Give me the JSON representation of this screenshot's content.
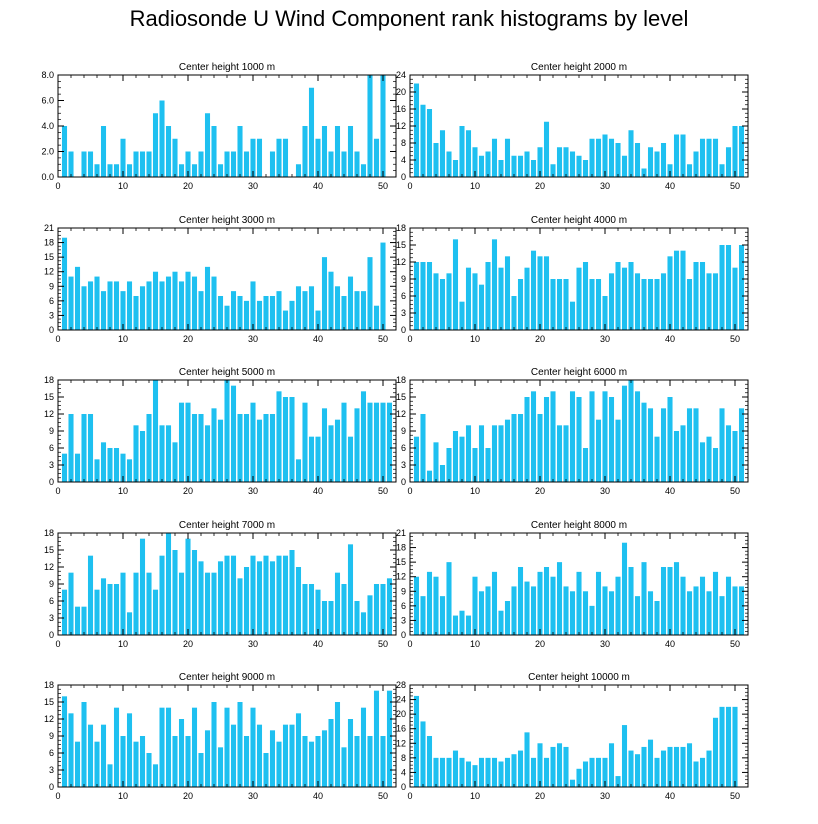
{
  "title": "Radiosonde U Wind Component rank histograms by level",
  "colors": {
    "bar": "#1ec0f0",
    "axis": "#000000"
  },
  "chart_data": [
    {
      "type": "bar",
      "title": "Center height 1000 m",
      "xlim": [
        0,
        52
      ],
      "ylim": [
        0,
        8
      ],
      "xticks": [
        0,
        10,
        20,
        30,
        40,
        50
      ],
      "yticks": [
        0,
        2,
        4,
        6,
        8
      ],
      "ytick_labels": [
        "0.0",
        "2.0",
        "4.0",
        "6.0",
        "8.0"
      ],
      "values": [
        4,
        2,
        0,
        2,
        2,
        1,
        4,
        1,
        1,
        3,
        1,
        2,
        2,
        2,
        5,
        6,
        4,
        3,
        1,
        2,
        1,
        2,
        5,
        4,
        1,
        2,
        2,
        4,
        2,
        3,
        3,
        0,
        2,
        3,
        3,
        0,
        1,
        4,
        7,
        3,
        4,
        2,
        4,
        2,
        4,
        2,
        1,
        8,
        3,
        8
      ]
    },
    {
      "type": "bar",
      "title": "Center height 2000 m",
      "xlim": [
        0,
        52
      ],
      "ylim": [
        0,
        24
      ],
      "xticks": [
        0,
        10,
        20,
        30,
        40,
        50
      ],
      "yticks": [
        0,
        4,
        8,
        12,
        16,
        20,
        24
      ],
      "ytick_labels": [
        "0",
        "4",
        "8",
        "12",
        "16",
        "20",
        "24"
      ],
      "values": [
        22,
        17,
        16,
        8,
        11,
        6,
        4,
        12,
        11,
        7,
        5,
        6,
        9,
        4,
        9,
        5,
        5,
        6,
        4,
        7,
        13,
        3,
        7,
        7,
        6,
        5,
        4,
        9,
        9,
        10,
        9,
        8,
        5,
        11,
        8,
        2,
        7,
        6,
        8,
        3,
        10,
        10,
        3,
        6,
        9,
        9,
        9,
        3,
        7,
        12,
        12
      ]
    },
    {
      "type": "bar",
      "title": "Center height 3000 m",
      "xlim": [
        0,
        52
      ],
      "ylim": [
        0,
        21
      ],
      "xticks": [
        0,
        10,
        20,
        30,
        40,
        50
      ],
      "yticks": [
        0,
        3,
        6,
        9,
        12,
        15,
        18,
        21
      ],
      "ytick_labels": [
        "0",
        "3",
        "6",
        "9",
        "12",
        "15",
        "18",
        "21"
      ],
      "values": [
        19,
        11,
        13,
        9,
        10,
        11,
        8,
        10,
        10,
        8,
        10,
        7,
        9,
        10,
        12,
        10,
        11,
        12,
        10,
        12,
        11,
        8,
        13,
        11,
        7,
        5,
        8,
        7,
        6,
        10,
        6,
        7,
        7,
        8,
        4,
        6,
        9,
        8,
        9,
        4,
        15,
        12,
        9,
        7,
        11,
        8,
        8,
        15,
        5,
        18
      ]
    },
    {
      "type": "bar",
      "title": "Center height 4000 m",
      "xlim": [
        0,
        52
      ],
      "ylim": [
        0,
        18
      ],
      "xticks": [
        0,
        10,
        20,
        30,
        40,
        50
      ],
      "yticks": [
        0,
        3,
        6,
        9,
        12,
        15,
        18
      ],
      "ytick_labels": [
        "0",
        "3",
        "6",
        "9",
        "12",
        "15",
        "18"
      ],
      "values": [
        12,
        12,
        12,
        10,
        9,
        10,
        16,
        5,
        11,
        10,
        8,
        12,
        16,
        11,
        13,
        6,
        9,
        11,
        14,
        13,
        13,
        9,
        9,
        9,
        5,
        11,
        12,
        9,
        9,
        6,
        10,
        12,
        11,
        12,
        10,
        9,
        9,
        9,
        10,
        13,
        14,
        14,
        9,
        12,
        12,
        10,
        10,
        15,
        15,
        11,
        15
      ]
    },
    {
      "type": "bar",
      "title": "Center height 5000 m",
      "xlim": [
        0,
        52
      ],
      "ylim": [
        0,
        18
      ],
      "xticks": [
        0,
        10,
        20,
        30,
        40,
        50
      ],
      "yticks": [
        0,
        3,
        6,
        9,
        12,
        15,
        18
      ],
      "ytick_labels": [
        "0",
        "3",
        "6",
        "9",
        "12",
        "15",
        "18"
      ],
      "values": [
        5,
        12,
        5,
        12,
        12,
        4,
        7,
        6,
        6,
        5,
        4,
        10,
        9,
        12,
        18,
        10,
        10,
        7,
        14,
        14,
        12,
        12,
        10,
        13,
        11,
        18,
        17,
        12,
        12,
        14,
        11,
        12,
        12,
        16,
        15,
        15,
        4,
        14,
        8,
        8,
        13,
        10,
        11,
        14,
        8,
        13,
        16,
        14,
        14,
        14,
        14
      ]
    },
    {
      "type": "bar",
      "title": "Center height 6000 m",
      "xlim": [
        0,
        52
      ],
      "ylim": [
        0,
        18
      ],
      "xticks": [
        0,
        10,
        20,
        30,
        40,
        50
      ],
      "yticks": [
        0,
        3,
        6,
        9,
        12,
        15,
        18
      ],
      "ytick_labels": [
        "0",
        "3",
        "6",
        "9",
        "12",
        "15",
        "18"
      ],
      "values": [
        8,
        12,
        2,
        7,
        3,
        6,
        9,
        8,
        10,
        6,
        10,
        6,
        10,
        10,
        11,
        12,
        12,
        15,
        16,
        12,
        15,
        16,
        10,
        10,
        16,
        15,
        6,
        16,
        11,
        16,
        15,
        11,
        17,
        18,
        16,
        14,
        13,
        8,
        13,
        15,
        9,
        10,
        13,
        13,
        7,
        8,
        6,
        13,
        10,
        9,
        13
      ]
    },
    {
      "type": "bar",
      "title": "Center height 7000 m",
      "xlim": [
        0,
        52
      ],
      "ylim": [
        0,
        18
      ],
      "xticks": [
        0,
        10,
        20,
        30,
        40,
        50
      ],
      "yticks": [
        0,
        3,
        6,
        9,
        12,
        15,
        18
      ],
      "ytick_labels": [
        "0",
        "3",
        "6",
        "9",
        "12",
        "15",
        "18"
      ],
      "values": [
        8,
        11,
        5,
        5,
        14,
        8,
        10,
        9,
        9,
        11,
        4,
        11,
        17,
        11,
        8,
        14,
        18,
        15,
        11,
        17,
        15,
        13,
        11,
        11,
        13,
        14,
        14,
        10,
        12,
        14,
        13,
        14,
        13,
        14,
        14,
        15,
        12,
        9,
        9,
        8,
        6,
        6,
        11,
        9,
        16,
        6,
        4,
        7,
        9,
        9,
        10
      ]
    },
    {
      "type": "bar",
      "title": "Center height 8000 m",
      "xlim": [
        0,
        52
      ],
      "ylim": [
        0,
        21
      ],
      "xticks": [
        0,
        10,
        20,
        30,
        40,
        50
      ],
      "yticks": [
        0,
        3,
        6,
        9,
        12,
        15,
        18,
        21
      ],
      "ytick_labels": [
        "0",
        "3",
        "6",
        "9",
        "12",
        "15",
        "18",
        "21"
      ],
      "values": [
        12,
        8,
        13,
        12,
        8,
        15,
        4,
        5,
        4,
        12,
        9,
        10,
        13,
        5,
        7,
        10,
        14,
        11,
        10,
        13,
        14,
        12,
        15,
        10,
        9,
        13,
        9,
        6,
        13,
        10,
        9,
        12,
        19,
        14,
        8,
        15,
        9,
        7,
        14,
        14,
        15,
        12,
        9,
        10,
        12,
        9,
        13,
        8,
        12,
        10,
        10
      ]
    },
    {
      "type": "bar",
      "title": "Center height 9000 m",
      "xlim": [
        0,
        52
      ],
      "ylim": [
        0,
        18
      ],
      "xticks": [
        0,
        10,
        20,
        30,
        40,
        50
      ],
      "yticks": [
        0,
        3,
        6,
        9,
        12,
        15,
        18
      ],
      "ytick_labels": [
        "0",
        "3",
        "6",
        "9",
        "12",
        "15",
        "18"
      ],
      "values": [
        16,
        13,
        8,
        15,
        11,
        8,
        11,
        4,
        14,
        9,
        13,
        8,
        9,
        6,
        4,
        14,
        14,
        9,
        12,
        9,
        14,
        6,
        10,
        15,
        7,
        14,
        11,
        15,
        9,
        14,
        11,
        6,
        10,
        8,
        11,
        11,
        13,
        9,
        8,
        9,
        10,
        12,
        15,
        7,
        12,
        9,
        14,
        9,
        17,
        9,
        17
      ]
    },
    {
      "type": "bar",
      "title": "Center height 10000 m",
      "xlim": [
        0,
        52
      ],
      "ylim": [
        0,
        28
      ],
      "xticks": [
        0,
        10,
        20,
        30,
        40,
        50
      ],
      "yticks": [
        0,
        4,
        8,
        12,
        16,
        20,
        24,
        28
      ],
      "ytick_labels": [
        "0",
        "4",
        "8",
        "12",
        "16",
        "20",
        "24",
        "28"
      ],
      "values": [
        25,
        18,
        14,
        8,
        8,
        8,
        10,
        8,
        7,
        6,
        8,
        8,
        8,
        7,
        8,
        9,
        10,
        15,
        8,
        12,
        8,
        11,
        12,
        11,
        2,
        5,
        7,
        8,
        8,
        8,
        12,
        3,
        17,
        10,
        9,
        11,
        13,
        8,
        10,
        11,
        11,
        11,
        12,
        7,
        8,
        10,
        19,
        22,
        22,
        22
      ]
    }
  ]
}
